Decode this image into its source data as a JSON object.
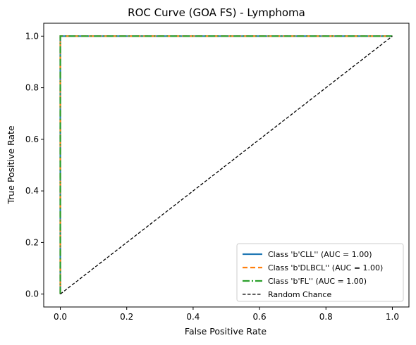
{
  "chart_data": {
    "type": "line",
    "title": "ROC Curve (GOA FS) - Lymphoma",
    "xlabel": "False Positive Rate",
    "ylabel": "True Positive Rate",
    "xlim": [
      -0.05,
      1.05
    ],
    "ylim": [
      -0.05,
      1.05
    ],
    "xticks": [
      0.0,
      0.2,
      0.4,
      0.6,
      0.8,
      1.0
    ],
    "yticks": [
      0.0,
      0.2,
      0.4,
      0.6,
      0.8,
      1.0
    ],
    "xtick_labels": [
      "0.0",
      "0.2",
      "0.4",
      "0.6",
      "0.8",
      "1.0"
    ],
    "ytick_labels": [
      "0.0",
      "0.2",
      "0.4",
      "0.6",
      "0.8",
      "1.0"
    ],
    "grid": false,
    "legend_position": "lower-right",
    "series": [
      {
        "name": "Class 'b'CLL'' (AUC = 1.00)",
        "color": "#1f77b4",
        "style": "solid",
        "x": [
          0.0,
          0.0,
          1.0
        ],
        "y": [
          0.0,
          1.0,
          1.0
        ]
      },
      {
        "name": "Class 'b'DLBCL'' (AUC = 1.00)",
        "color": "#ff7f0e",
        "style": "dashed",
        "x": [
          0.0,
          0.0,
          1.0
        ],
        "y": [
          0.0,
          1.0,
          1.0
        ]
      },
      {
        "name": "Class 'b'FL'' (AUC = 1.00)",
        "color": "#2ca02c",
        "style": "dashdot",
        "x": [
          0.0,
          0.0,
          1.0
        ],
        "y": [
          0.0,
          1.0,
          1.0
        ]
      },
      {
        "name": "Random Chance",
        "color": "#000000",
        "style": "dashed-thin",
        "x": [
          0.0,
          1.0
        ],
        "y": [
          0.0,
          1.0
        ]
      }
    ]
  }
}
